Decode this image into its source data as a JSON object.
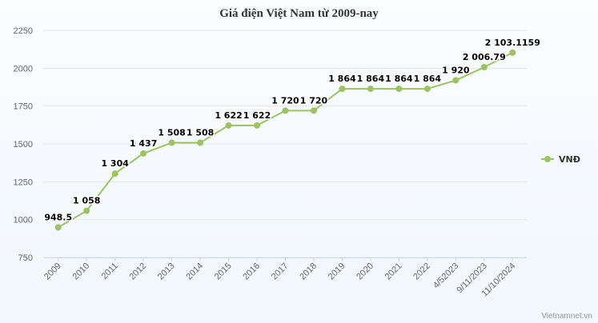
{
  "chart_data": {
    "type": "line",
    "title": "Giá điện Việt Nam từ 2009-nay",
    "categories": [
      "2009",
      "2010",
      "2011",
      "2012",
      "2013",
      "2014",
      "2015",
      "2016",
      "2017",
      "2018",
      "2019",
      "2020",
      "2021",
      "2022",
      "4/52023",
      "9/11/2023",
      "11/10/2024"
    ],
    "series": [
      {
        "name": "VNĐ",
        "values": [
          948.5,
          1058,
          1304,
          1437,
          1508,
          1508,
          1622,
          1622,
          1720,
          1720,
          1864,
          1864,
          1864,
          1864,
          1920,
          2006.79,
          2103.1159
        ],
        "labels": [
          "948.5",
          "1 058",
          "1 304",
          "1 437",
          "1 508",
          "1 508",
          "1 622",
          "1 622",
          "1 720",
          "1 720",
          "1 864",
          "1 864",
          "1 864",
          "1 864",
          "1 920",
          "2 006.79",
          "2 103.1159"
        ]
      }
    ],
    "yticks": [
      "750",
      "1000",
      "1250",
      "1500",
      "1750",
      "2000",
      "2250"
    ],
    "ylim": [
      750,
      2250
    ],
    "grid": true,
    "legend_position": "right",
    "color": "#9bc45f"
  },
  "credit": "Vietnamnet.vn"
}
